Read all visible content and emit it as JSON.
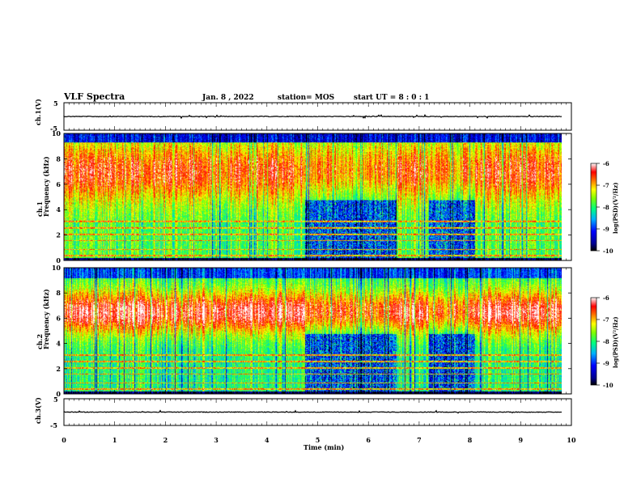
{
  "header": {
    "title": "VLF Spectra",
    "date": "Jan. 8 , 2022",
    "station": "station= MOS",
    "start_ut": "start UT =  8 : 0 : 1"
  },
  "chart_data": [
    {
      "type": "line",
      "name_label": "ch.1(V)",
      "ylim": [
        -5,
        5
      ],
      "yticks": [
        "5",
        "-5"
      ],
      "xlim": [
        0,
        10
      ]
    },
    {
      "type": "heatmap",
      "ylabel_top": "ch.1",
      "ylabel": "Frequency (kHz)",
      "ylim": [
        0,
        10
      ],
      "yticks": [
        "0",
        "2",
        "4",
        "6",
        "8",
        "10"
      ],
      "xlim": [
        0,
        10
      ],
      "colorbar": {
        "label": "log(PSD)(V²/Hz)",
        "range": [
          -10,
          -6
        ],
        "ticks": [
          "-6",
          "-7",
          "-8",
          "-9",
          "-10"
        ]
      },
      "quiet_intervals_min": [
        [
          4.75,
          6.55
        ],
        [
          7.2,
          8.1
        ]
      ]
    },
    {
      "type": "heatmap",
      "ylabel_top": "ch.2",
      "ylabel": "Frequency (kHz)",
      "ylim": [
        0,
        10
      ],
      "yticks": [
        "0",
        "2",
        "4",
        "6",
        "8",
        "10"
      ],
      "xlim": [
        0,
        10
      ],
      "colorbar": {
        "label": "log(PSD)(V²/Hz)",
        "range": [
          -10,
          -6
        ],
        "ticks": [
          "-6",
          "-7",
          "-8",
          "-9",
          "-10"
        ]
      },
      "quiet_intervals_min": [
        [
          4.75,
          6.55
        ],
        [
          7.2,
          8.1
        ]
      ]
    },
    {
      "type": "line",
      "name_label": "ch.3(V)",
      "ylim": [
        -5,
        5
      ],
      "yticks": [
        "5",
        "-5"
      ],
      "xlim": [
        0,
        10
      ],
      "xlabel": "Time (min)",
      "xticks": [
        "0",
        "1",
        "2",
        "3",
        "4",
        "5",
        "6",
        "7",
        "8",
        "9",
        "10"
      ]
    }
  ]
}
